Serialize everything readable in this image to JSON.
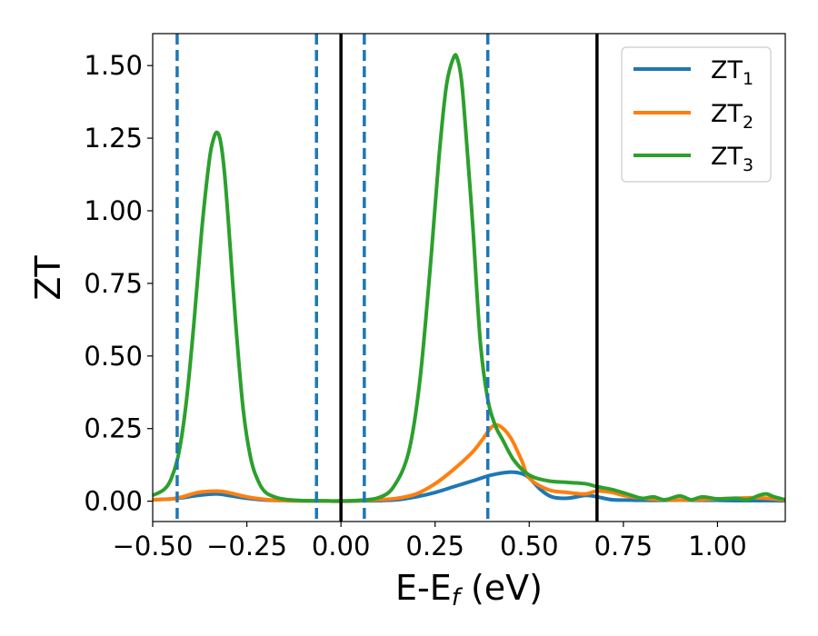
{
  "chart_data": {
    "type": "line",
    "xlabel_main": "E-E",
    "xlabel_sub": "f",
    "xlabel_unit": " (eV)",
    "ylabel": "ZT",
    "xlim": [
      -0.5,
      1.18
    ],
    "ylim": [
      -0.07,
      1.61
    ],
    "x_ticks": [
      -0.5,
      -0.25,
      0.0,
      0.25,
      0.5,
      0.75,
      1.0
    ],
    "x_tick_labels": [
      "−0.50",
      "−0.25",
      "0.00",
      "0.25",
      "0.50",
      "0.75",
      "1.00"
    ],
    "y_ticks": [
      0.0,
      0.25,
      0.5,
      0.75,
      1.0,
      1.25,
      1.5
    ],
    "y_tick_labels": [
      "0.00",
      "0.25",
      "0.50",
      "0.75",
      "1.00",
      "1.25",
      "1.50"
    ],
    "grid": false,
    "legend_position": "top-right",
    "vlines_dashed": [
      -0.435,
      -0.065,
      0.062,
      0.39
    ],
    "vlines_solid": [
      0.0,
      0.68
    ],
    "series": [
      {
        "name": "ZT",
        "name_sub": "1",
        "color": "#1f77b4",
        "x": [
          -0.5,
          -0.45,
          -0.42,
          -0.38,
          -0.33,
          -0.3,
          -0.25,
          -0.2,
          -0.15,
          -0.1,
          -0.05,
          0.0,
          0.05,
          0.1,
          0.15,
          0.2,
          0.25,
          0.3,
          0.35,
          0.4,
          0.45,
          0.48,
          0.5,
          0.53,
          0.56,
          0.6,
          0.65,
          0.68,
          0.72,
          0.76,
          0.8,
          0.85,
          0.9,
          0.95,
          1.0,
          1.05,
          1.1,
          1.15,
          1.18
        ],
        "y": [
          0.005,
          0.008,
          0.012,
          0.02,
          0.025,
          0.02,
          0.01,
          0.004,
          0.002,
          0.001,
          0.001,
          0.0,
          0.001,
          0.002,
          0.005,
          0.015,
          0.03,
          0.05,
          0.07,
          0.09,
          0.1,
          0.095,
          0.08,
          0.04,
          0.015,
          0.01,
          0.02,
          0.015,
          0.005,
          0.004,
          0.003,
          0.003,
          0.004,
          0.003,
          0.003,
          0.002,
          0.002,
          0.002,
          0.001
        ]
      },
      {
        "name": "ZT",
        "name_sub": "2",
        "color": "#ff7f0e",
        "x": [
          -0.5,
          -0.45,
          -0.42,
          -0.38,
          -0.33,
          -0.3,
          -0.25,
          -0.2,
          -0.15,
          -0.1,
          -0.05,
          0.0,
          0.05,
          0.1,
          0.15,
          0.2,
          0.25,
          0.3,
          0.35,
          0.38,
          0.4,
          0.42,
          0.45,
          0.48,
          0.5,
          0.55,
          0.6,
          0.65,
          0.68,
          0.72,
          0.75,
          0.8,
          0.85,
          0.9,
          0.95,
          1.0,
          1.05,
          1.1,
          1.15,
          1.18
        ],
        "y": [
          0.005,
          0.008,
          0.015,
          0.03,
          0.035,
          0.03,
          0.015,
          0.006,
          0.002,
          0.001,
          0.001,
          0.0,
          0.002,
          0.005,
          0.01,
          0.025,
          0.06,
          0.11,
          0.17,
          0.22,
          0.255,
          0.26,
          0.22,
          0.14,
          0.08,
          0.04,
          0.03,
          0.025,
          0.035,
          0.03,
          0.02,
          0.01,
          0.005,
          0.004,
          0.005,
          0.008,
          0.01,
          0.012,
          0.008,
          0.003
        ]
      },
      {
        "name": "ZT",
        "name_sub": "3",
        "color": "#2ca02c",
        "x": [
          -0.5,
          -0.47,
          -0.45,
          -0.43,
          -0.41,
          -0.39,
          -0.37,
          -0.35,
          -0.34,
          -0.33,
          -0.32,
          -0.31,
          -0.3,
          -0.28,
          -0.26,
          -0.24,
          -0.22,
          -0.2,
          -0.17,
          -0.14,
          -0.1,
          -0.05,
          0.0,
          0.05,
          0.1,
          0.14,
          0.18,
          0.21,
          0.24,
          0.26,
          0.28,
          0.3,
          0.31,
          0.32,
          0.33,
          0.35,
          0.37,
          0.39,
          0.41,
          0.43,
          0.46,
          0.5,
          0.55,
          0.6,
          0.65,
          0.68,
          0.72,
          0.76,
          0.8,
          0.83,
          0.86,
          0.9,
          0.93,
          0.96,
          1.0,
          1.05,
          1.08,
          1.11,
          1.13,
          1.15,
          1.18
        ],
        "y": [
          0.02,
          0.04,
          0.08,
          0.17,
          0.35,
          0.62,
          0.93,
          1.17,
          1.24,
          1.27,
          1.24,
          1.14,
          0.98,
          0.62,
          0.32,
          0.15,
          0.07,
          0.03,
          0.012,
          0.005,
          0.002,
          0.001,
          0.001,
          0.003,
          0.012,
          0.05,
          0.17,
          0.42,
          0.85,
          1.18,
          1.43,
          1.53,
          1.52,
          1.45,
          1.3,
          0.95,
          0.55,
          0.35,
          0.26,
          0.21,
          0.14,
          0.09,
          0.07,
          0.065,
          0.06,
          0.05,
          0.04,
          0.025,
          0.01,
          0.015,
          0.005,
          0.018,
          0.005,
          0.015,
          0.008,
          0.01,
          0.005,
          0.02,
          0.025,
          0.015,
          0.005
        ]
      }
    ]
  }
}
